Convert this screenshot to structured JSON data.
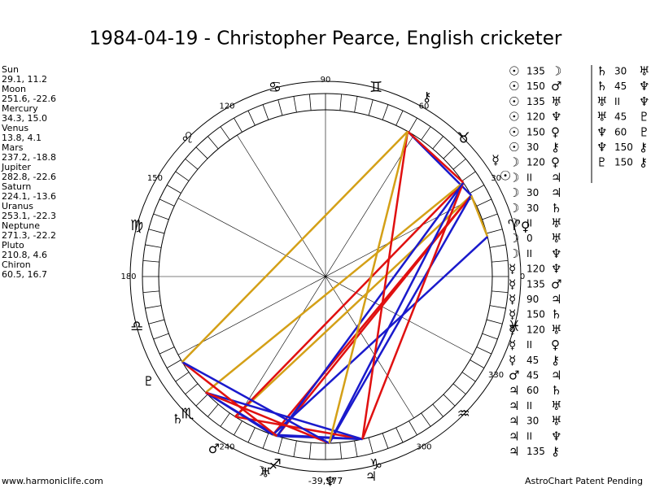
{
  "title": "1984-04-19 - Christopher Pearce, English cricketer",
  "planets": [
    {
      "name": "Sun",
      "coords": "29.1, 11.2",
      "glyph": "☉"
    },
    {
      "name": "Moon",
      "coords": "251.6, -22.6",
      "glyph": "☽"
    },
    {
      "name": "Mercury",
      "coords": "34.3, 15.0",
      "glyph": "☿"
    },
    {
      "name": "Venus",
      "coords": "13.8, 4.1",
      "glyph": "♀"
    },
    {
      "name": "Mars",
      "coords": "237.2, -18.8",
      "glyph": "♂"
    },
    {
      "name": "Jupiter",
      "coords": "282.8, -22.6",
      "glyph": "♃"
    },
    {
      "name": "Saturn",
      "coords": "224.1, -13.6",
      "glyph": "♄"
    },
    {
      "name": "Uranus",
      "coords": "253.1, -22.3",
      "glyph": "♅"
    },
    {
      "name": "Neptune",
      "coords": "271.3, -22.2",
      "glyph": "♆"
    },
    {
      "name": "Pluto",
      "coords": "210.8, 4.6",
      "glyph": "♇"
    },
    {
      "name": "Chiron",
      "coords": "60.5, 16.7",
      "glyph": "⚷"
    }
  ],
  "signs": [
    "♈",
    "♉",
    "♊",
    "♋",
    "♌",
    "♍",
    "♎",
    "♏",
    "♐",
    "♑",
    "♒",
    "♓"
  ],
  "degree_labels": [
    0,
    30,
    60,
    90,
    120,
    150,
    180,
    240,
    300,
    330
  ],
  "aspect_colors": {
    "0": "#d4a017",
    "30": "#1a1acc",
    "45": "#e01010",
    "60": "#1a1acc",
    "90": "#e01010",
    "120": "#1a1acc",
    "135": "#e01010",
    "150": "#d4a017"
  },
  "aspects": [
    [
      "☉",
      "135",
      "☽"
    ],
    [
      "☉",
      "150",
      "♂"
    ],
    [
      "☉",
      "135",
      "♅"
    ],
    [
      "☉",
      "120",
      "♆"
    ],
    [
      "☉",
      "150",
      "♀"
    ],
    [
      "☉",
      "30",
      "⚷"
    ],
    [
      "☽",
      "120",
      "♀"
    ],
    [
      "☽",
      "II",
      "♃"
    ],
    [
      "☽",
      "30",
      "♃"
    ],
    [
      "☽",
      "30",
      "♄"
    ],
    [
      "☽",
      "II",
      "♅"
    ],
    [
      "☽",
      "0",
      "♅"
    ],
    [
      "☽",
      "II",
      "♆"
    ],
    [
      "☿",
      "120",
      "♆"
    ],
    [
      "☿",
      "135",
      "♂"
    ],
    [
      "☿",
      "90",
      "♃"
    ],
    [
      "☿",
      "150",
      "♄"
    ],
    [
      "☿",
      "120",
      "♅"
    ],
    [
      "☿",
      "II",
      "♀"
    ],
    [
      "☿",
      "45",
      "⚷"
    ],
    [
      "♂",
      "45",
      "♃"
    ],
    [
      "♃",
      "60",
      "♄"
    ],
    [
      "♃",
      "II",
      "♅"
    ],
    [
      "♃",
      "30",
      "♅"
    ],
    [
      "♃",
      "II",
      "♆"
    ],
    [
      "♃",
      "135",
      "⚷"
    ],
    [
      "♄",
      "30",
      "♅"
    ],
    [
      "♄",
      "45",
      "♆"
    ],
    [
      "♅",
      "II",
      "♆"
    ],
    [
      "♅",
      "45",
      "♇"
    ],
    [
      "♆",
      "60",
      "♇"
    ],
    [
      "♆",
      "150",
      "⚷"
    ],
    [
      "♇",
      "150",
      "⚷"
    ]
  ],
  "footer": {
    "left": "www.harmoniclife.com",
    "center": "-39,577",
    "right": "AstroChart Patent Pending"
  }
}
